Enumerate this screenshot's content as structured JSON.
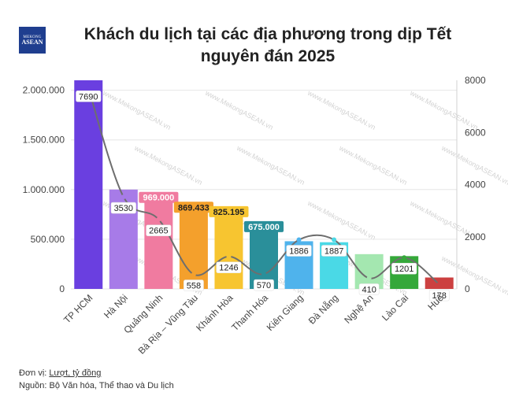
{
  "logo": {
    "line1": "MEKONG",
    "line2": "ASEAN"
  },
  "footer": {
    "unit_prefix": "Đơn vị: ",
    "unit_value": "Lượt, tỷ đồng",
    "source": "Nguồn: Bộ Văn hóa, Thể thao và Du lịch"
  },
  "chart_data": {
    "type": "bar",
    "title": "Khách du lịch tại các địa phương trong dịp Tết nguyên đán 2025",
    "categories": [
      "TP HCM",
      "Hà Nội",
      "Quảng Ninh",
      "Bà Rịa – Vũng Tàu",
      "Khánh Hòa",
      "Thanh Hóa",
      "Kiên Giang",
      "Đà Nẵng",
      "Nghệ An",
      "Lào Cai",
      "Huế"
    ],
    "series": [
      {
        "axis": "left",
        "type": "bar",
        "values": [
          2100000,
          1000000,
          969000,
          869433,
          825195,
          675000,
          480000,
          470000,
          350000,
          330000,
          115000
        ],
        "labels": [
          "",
          "",
          "969.000",
          "869.433",
          "825.195",
          "675.000",
          "",
          "",
          "",
          "",
          ""
        ],
        "colors": [
          "#6a3fe0",
          "#a77be8",
          "#f07ba0",
          "#f4a02c",
          "#f7c530",
          "#2a8f9a",
          "#4fb3ec",
          "#4ad9e6",
          "#a4e7b0",
          "#35a83a",
          "#cc4040"
        ]
      },
      {
        "axis": "right",
        "type": "line",
        "values": [
          7690,
          3530,
          2665,
          558,
          1246,
          570,
          1886,
          1887,
          410,
          1201,
          178
        ],
        "labels": [
          "7690",
          "3530",
          "2665",
          "558",
          "1246",
          "570",
          "1886",
          "1887",
          "410",
          "1201",
          "178"
        ],
        "color": "#6e6e6e"
      }
    ],
    "left_axis": {
      "ylim": [
        0,
        2100000
      ],
      "ticks": [
        "0",
        "500.000",
        "1.000.000",
        "1.500.000",
        "2.000.000"
      ],
      "tick_values": [
        0,
        500000,
        1000000,
        1500000,
        2000000
      ]
    },
    "right_axis": {
      "ylim": [
        0,
        8000
      ],
      "ticks": [
        "0",
        "2000",
        "4000",
        "6000",
        "8000"
      ],
      "tick_values": [
        0,
        2000,
        4000,
        6000,
        8000
      ]
    },
    "grid": true,
    "watermark": "www.MekongASEAN.vn"
  }
}
